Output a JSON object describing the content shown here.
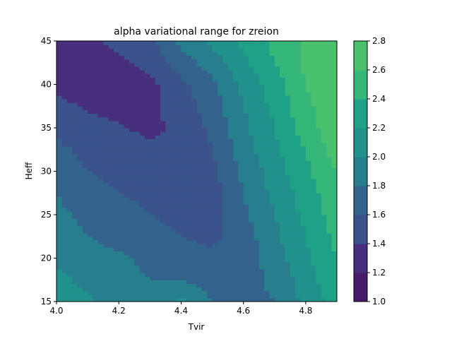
{
  "chart_data": {
    "type": "heatmap",
    "subtype": "filled-contour",
    "title": "alpha variational range for zreion",
    "xlabel": "Tvir",
    "ylabel": "Heff",
    "xlim": [
      4.0,
      4.9
    ],
    "ylim": [
      15,
      45
    ],
    "x_ticks": [
      "4.0",
      "4.2",
      "4.4",
      "4.6",
      "4.8"
    ],
    "y_ticks": [
      "15",
      "20",
      "25",
      "30",
      "35",
      "40",
      "45"
    ],
    "colorbar": {
      "levels": [
        1.0,
        1.2,
        1.4,
        1.6,
        1.8,
        2.0,
        2.2,
        2.4,
        2.6,
        2.8
      ],
      "tick_labels": [
        "1.0",
        "1.2",
        "1.4",
        "1.6",
        "1.8",
        "2.0",
        "2.2",
        "2.4",
        "2.6",
        "2.8"
      ],
      "colors": [
        "#481a6c",
        "#472f7d",
        "#3b528b",
        "#33638d",
        "#277f8e",
        "#21918c",
        "#1fa187",
        "#35b779",
        "#4ac16d",
        "#8fd744",
        "#dde318"
      ],
      "colormap": "viridis"
    },
    "x": [
      4.0,
      4.1,
      4.2,
      4.3,
      4.4,
      4.5,
      4.6,
      4.7,
      4.8,
      4.9
    ],
    "y": [
      15,
      17.5,
      20,
      22.5,
      25,
      27.5,
      30,
      32.5,
      35,
      37.5,
      40,
      42.5,
      45
    ],
    "z": [
      [
        2.1,
        2.05,
        1.85,
        1.85,
        2.05,
        1.8,
        1.75,
        1.8,
        2.05,
        2.3
      ],
      [
        2.05,
        1.95,
        1.85,
        1.8,
        1.8,
        1.7,
        1.7,
        1.85,
        2.1,
        2.35
      ],
      [
        1.95,
        1.9,
        1.85,
        1.75,
        1.7,
        1.65,
        1.7,
        1.9,
        2.15,
        2.4
      ],
      [
        1.9,
        1.8,
        1.7,
        1.65,
        1.6,
        1.55,
        1.7,
        1.95,
        2.2,
        2.45
      ],
      [
        1.85,
        1.75,
        1.7,
        1.6,
        1.55,
        1.5,
        1.75,
        2.0,
        2.25,
        2.5
      ],
      [
        1.8,
        1.65,
        1.6,
        1.55,
        1.5,
        1.5,
        1.8,
        2.05,
        2.3,
        2.55
      ],
      [
        1.7,
        1.6,
        1.55,
        1.5,
        1.45,
        1.55,
        1.85,
        2.1,
        2.35,
        2.6
      ],
      [
        1.65,
        1.55,
        1.5,
        1.45,
        1.45,
        1.6,
        1.9,
        2.15,
        2.4,
        2.7
      ],
      [
        1.55,
        1.45,
        1.42,
        1.35,
        1.45,
        1.65,
        1.95,
        2.2,
        2.5,
        2.75
      ],
      [
        1.45,
        1.38,
        1.35,
        1.35,
        1.5,
        1.7,
        2.0,
        2.25,
        2.55,
        2.75
      ],
      [
        1.35,
        1.3,
        1.3,
        1.35,
        1.55,
        1.75,
        2.05,
        2.3,
        2.6,
        2.75
      ],
      [
        1.3,
        1.28,
        1.35,
        1.45,
        1.7,
        1.9,
        2.15,
        2.4,
        2.65,
        2.75
      ],
      [
        1.3,
        1.35,
        1.45,
        1.55,
        1.85,
        2.05,
        2.25,
        2.45,
        2.65,
        2.75
      ]
    ]
  }
}
